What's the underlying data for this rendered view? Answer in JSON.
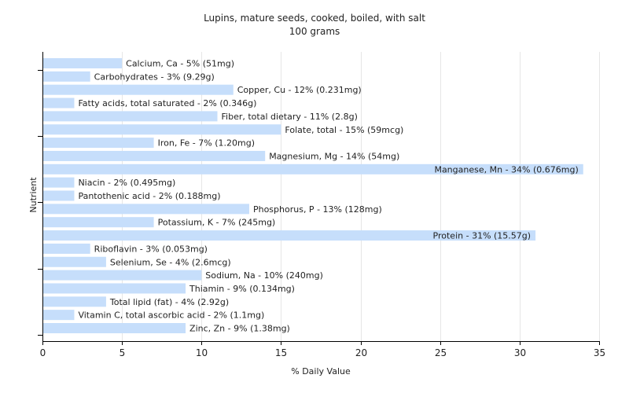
{
  "chart_data": {
    "type": "bar",
    "orientation": "horizontal",
    "title": "Lupins, mature seeds, cooked, boiled, with salt",
    "subtitle": "100 grams",
    "xlabel": "% Daily Value",
    "ylabel": "Nutrient",
    "xlim": [
      0,
      35
    ],
    "xticks": [
      0,
      5,
      10,
      15,
      20,
      25,
      30,
      35
    ],
    "grid": "vertical",
    "bar_color": "#c6defb",
    "categories": [
      "Calcium, Ca",
      "Carbohydrates",
      "Copper, Cu",
      "Fatty acids, total saturated",
      "Fiber, total dietary",
      "Folate, total",
      "Iron, Fe",
      "Magnesium, Mg",
      "Manganese, Mn",
      "Niacin",
      "Pantothenic acid",
      "Phosphorus, P",
      "Potassium, K",
      "Protein",
      "Riboflavin",
      "Selenium, Se",
      "Sodium, Na",
      "Thiamin",
      "Total lipid (fat)",
      "Vitamin C, total ascorbic acid",
      "Zinc, Zn"
    ],
    "values": [
      5,
      3,
      12,
      2,
      11,
      15,
      7,
      14,
      34,
      2,
      2,
      13,
      7,
      31,
      3,
      4,
      10,
      9,
      4,
      2,
      9
    ],
    "labels": [
      "Calcium, Ca - 5% (51mg)",
      "Carbohydrates - 3% (9.29g)",
      "Copper, Cu - 12% (0.231mg)",
      "Fatty acids, total saturated - 2% (0.346g)",
      "Fiber, total dietary - 11% (2.8g)",
      "Folate, total - 15% (59mcg)",
      "Iron, Fe - 7% (1.20mg)",
      "Magnesium, Mg - 14% (54mg)",
      "Manganese, Mn - 34% (0.676mg)",
      "Niacin - 2% (0.495mg)",
      "Pantothenic acid - 2% (0.188mg)",
      "Phosphorus, P - 13% (128mg)",
      "Potassium, K - 7% (245mg)",
      "Protein - 31% (15.57g)",
      "Riboflavin - 3% (0.053mg)",
      "Selenium, Se - 4% (2.6mcg)",
      "Sodium, Na - 10% (240mg)",
      "Thiamin - 9% (0.134mg)",
      "Total lipid (fat) - 4% (2.92g)",
      "Vitamin C, total ascorbic acid - 2% (1.1mg)",
      "Zinc, Zn - 9% (1.38mg)"
    ]
  }
}
